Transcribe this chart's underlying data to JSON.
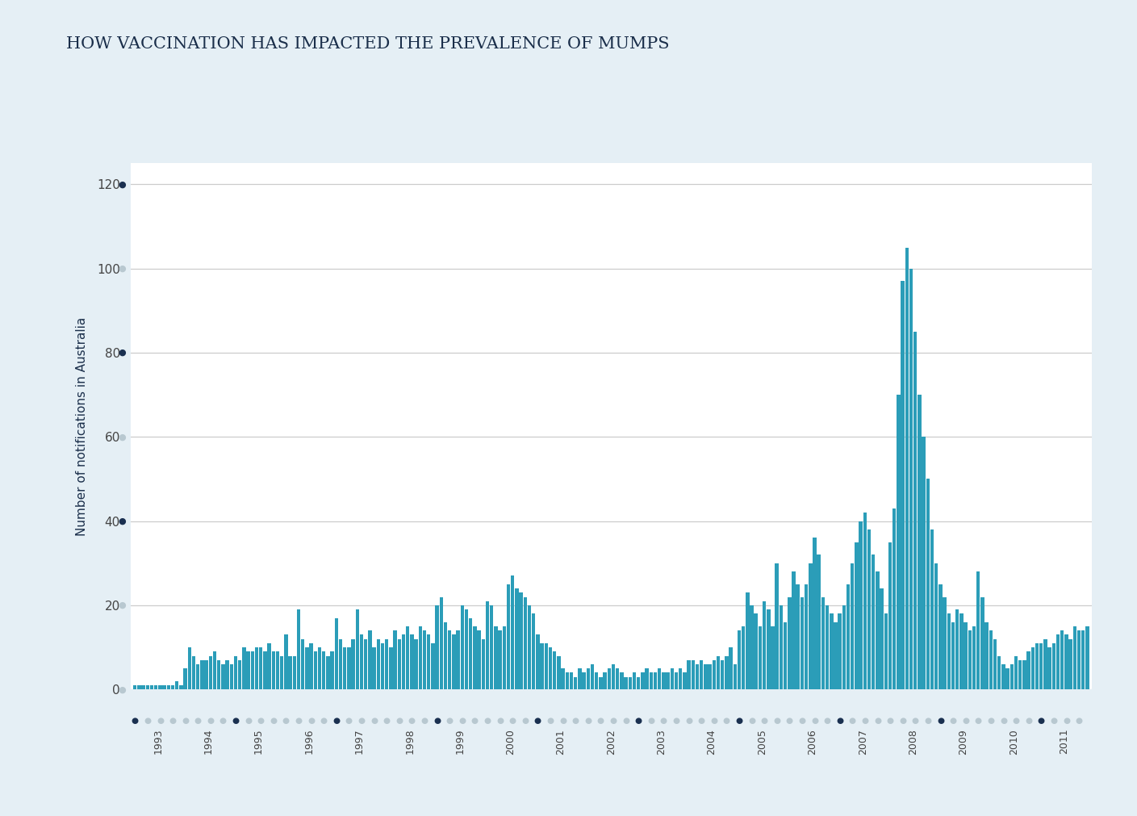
{
  "title": "HOW VACCINATION HAS IMPACTED THE PREVALENCE OF MUMPS",
  "ylabel": "Number of notifications in Australia",
  "bar_color": "#2b9db8",
  "background_outer": "#e5eff5",
  "background_inner": "#ffffff",
  "title_color": "#1a2e4a",
  "axis_label_color": "#1a2e4a",
  "tick_label_color": "#444444",
  "gridline_color": "#cccccc",
  "dot_color_dark": "#1a3050",
  "dot_color_light": "#b8c8d0",
  "ylim": [
    0,
    125
  ],
  "yticks": [
    0,
    20,
    40,
    60,
    80,
    100,
    120
  ],
  "year_labels": [
    "1993",
    "1994",
    "1995",
    "1996",
    "1997",
    "1998",
    "1999",
    "2000",
    "2001",
    "2002",
    "2003",
    "2004",
    "2005",
    "2006",
    "2007",
    "2008",
    "2009",
    "2010",
    "2011"
  ],
  "values": [
    1,
    1,
    1,
    1,
    1,
    1,
    1,
    1,
    1,
    1,
    2,
    1,
    5,
    10,
    8,
    6,
    7,
    7,
    8,
    9,
    7,
    6,
    7,
    6,
    8,
    7,
    10,
    9,
    9,
    10,
    10,
    9,
    11,
    9,
    9,
    8,
    13,
    8,
    8,
    19,
    12,
    10,
    11,
    9,
    10,
    9,
    8,
    9,
    17,
    12,
    10,
    10,
    12,
    19,
    13,
    12,
    14,
    10,
    12,
    11,
    12,
    10,
    14,
    12,
    13,
    15,
    13,
    12,
    15,
    14,
    13,
    11,
    20,
    22,
    16,
    14,
    13,
    14,
    20,
    19,
    17,
    15,
    14,
    12,
    21,
    20,
    15,
    14,
    15,
    25,
    27,
    24,
    23,
    22,
    20,
    18,
    13,
    11,
    11,
    10,
    9,
    8,
    5,
    4,
    4,
    3,
    5,
    4,
    5,
    6,
    4,
    3,
    4,
    5,
    6,
    5,
    4,
    3,
    3,
    4,
    3,
    4,
    5,
    4,
    4,
    5,
    4,
    4,
    5,
    4,
    5,
    4,
    7,
    7,
    6,
    7,
    6,
    6,
    7,
    8,
    7,
    8,
    10,
    6,
    14,
    15,
    23,
    20,
    18,
    15,
    21,
    19,
    15,
    30,
    20,
    16,
    22,
    28,
    25,
    22,
    25,
    30,
    36,
    32,
    22,
    20,
    18,
    16,
    18,
    20,
    25,
    30,
    35,
    40,
    42,
    38,
    32,
    28,
    24,
    18,
    35,
    43,
    70,
    97,
    105,
    100,
    85,
    70,
    60,
    50,
    38,
    30,
    25,
    22,
    18,
    16,
    19,
    18,
    16,
    14,
    15,
    28,
    22,
    16,
    14,
    12,
    8,
    6,
    5,
    6,
    8,
    7,
    7,
    9,
    10,
    11,
    11,
    12,
    10,
    11,
    13,
    14,
    13,
    12,
    15,
    14,
    14,
    15
  ],
  "dark_dot_years": [
    0,
    1,
    3,
    5,
    7,
    9,
    11,
    13,
    15,
    17
  ],
  "light_dot_years": [
    2,
    4,
    6,
    8,
    10,
    12,
    14,
    16,
    18
  ]
}
